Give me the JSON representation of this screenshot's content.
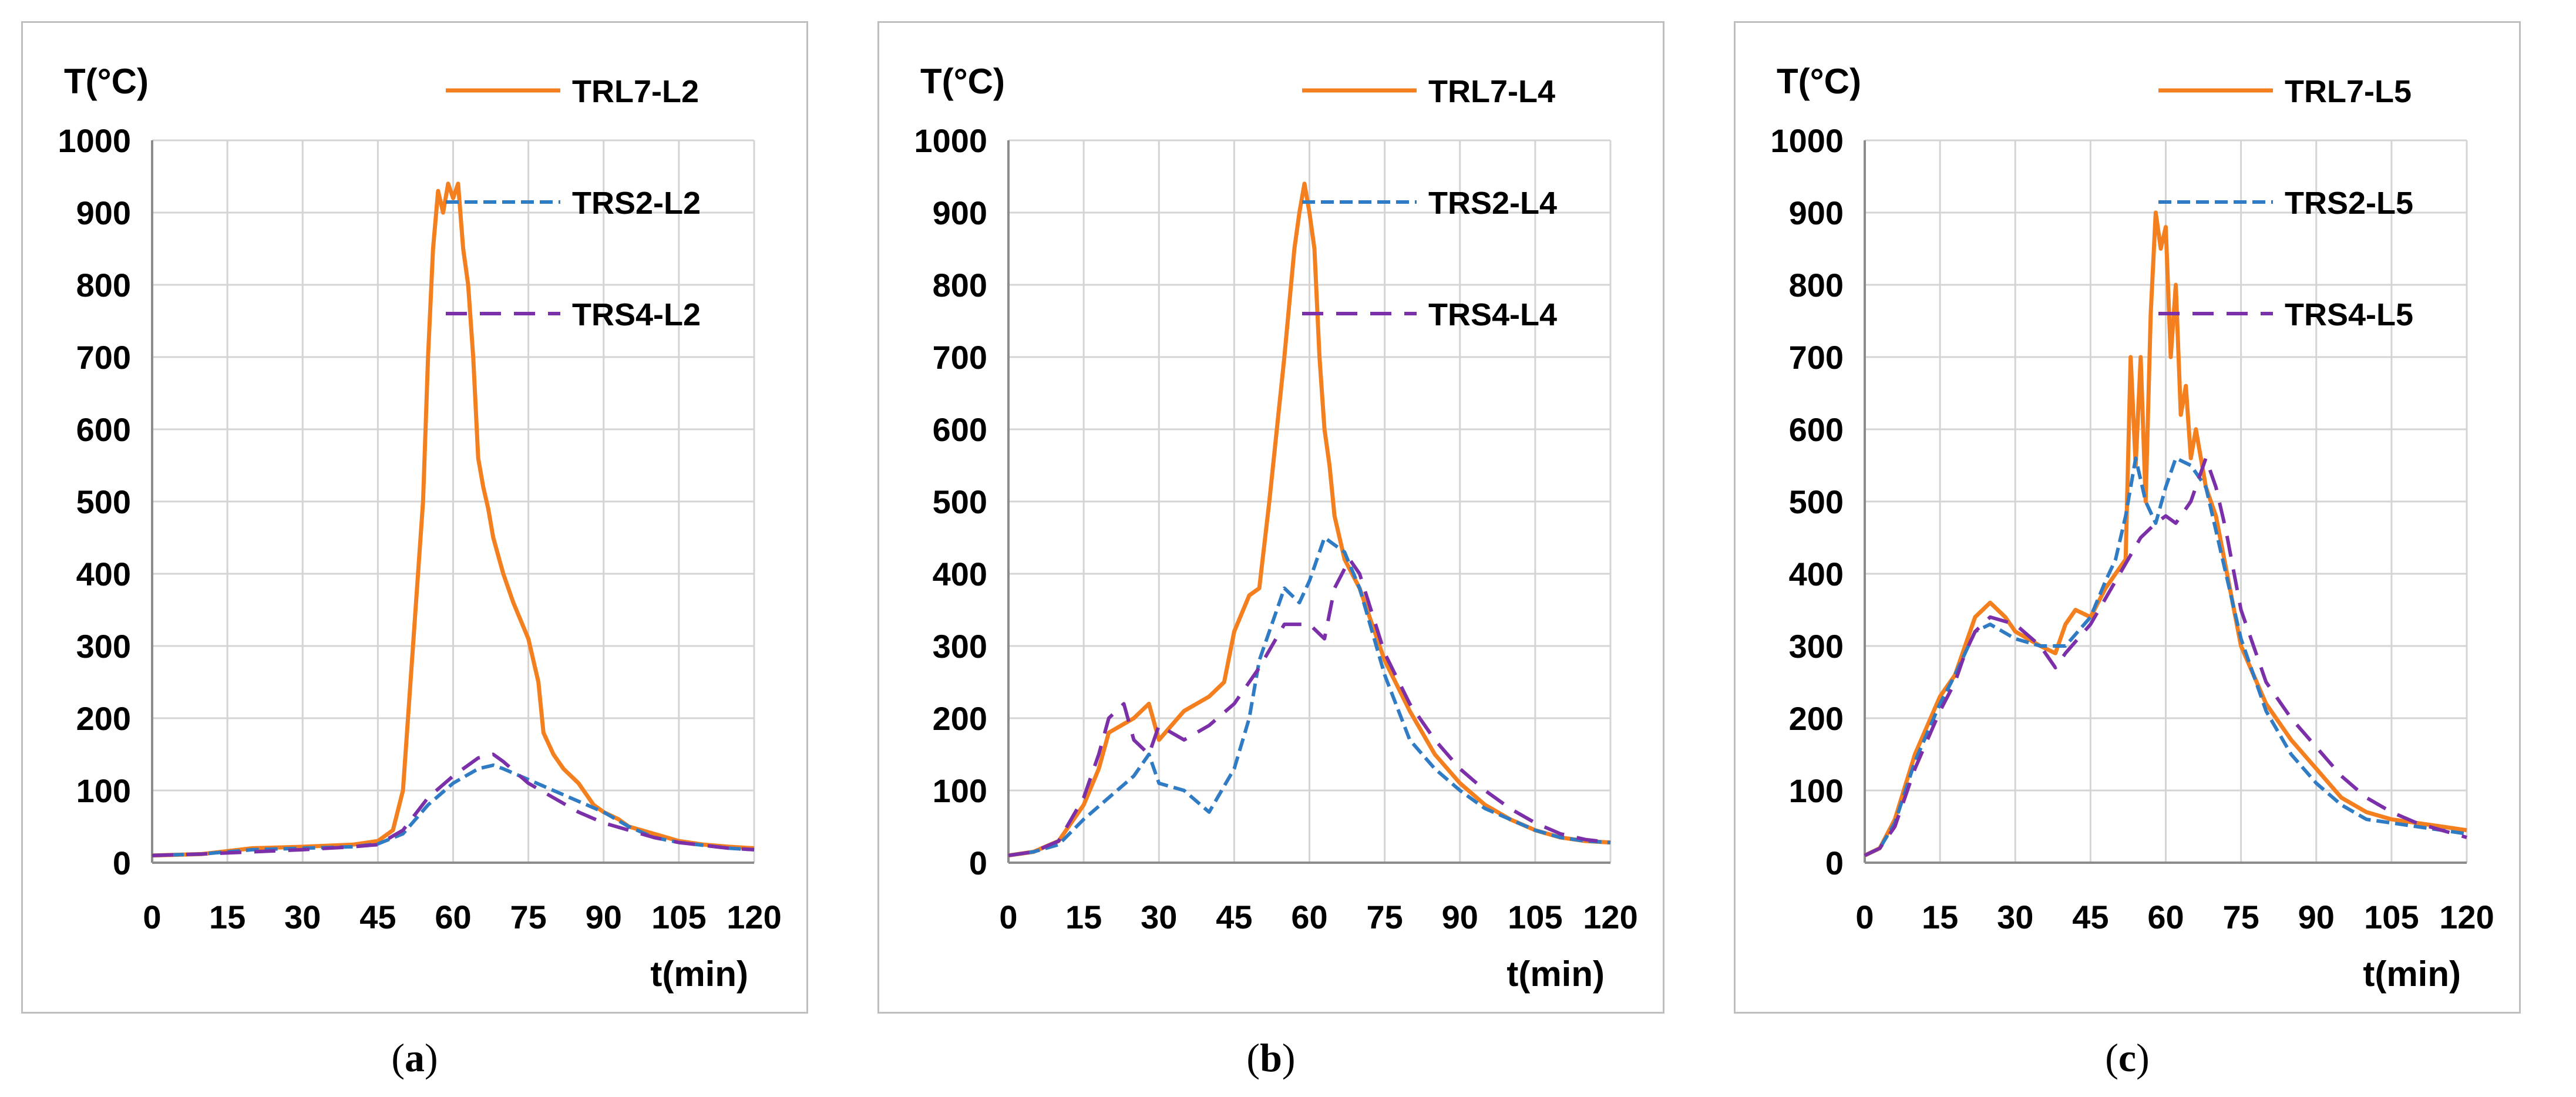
{
  "colors": {
    "trl7": "#F47F1F",
    "trs2": "#2F7CC4",
    "trs4": "#7B2FA8",
    "grid": "#d4d4d4",
    "axis": "#8c8c8c"
  },
  "chart_data": [
    {
      "type": "line",
      "panel_id": "a",
      "caption": {
        "open": "(",
        "letter": "a",
        "close": ")"
      },
      "ylabel": "T(°C)",
      "xlabel": "t(min)",
      "xlim": [
        0,
        120
      ],
      "ylim": [
        0,
        1000
      ],
      "xticks": [
        0,
        15,
        30,
        45,
        60,
        75,
        90,
        105,
        120
      ],
      "yticks": [
        0,
        100,
        200,
        300,
        400,
        500,
        600,
        700,
        800,
        900,
        1000
      ],
      "series": [
        {
          "name": "TRL7-L2",
          "style": "solid",
          "color": "#F47F1F",
          "x": [
            0,
            10,
            20,
            30,
            40,
            45,
            48,
            50,
            52,
            54,
            55,
            56,
            57,
            58,
            59,
            60,
            61,
            62,
            63,
            64,
            65,
            66,
            67,
            68,
            70,
            72,
            75,
            77,
            78,
            80,
            82,
            85,
            88,
            90,
            93,
            95,
            100,
            105,
            110,
            115,
            120
          ],
          "y": [
            10,
            12,
            20,
            22,
            25,
            30,
            45,
            100,
            300,
            500,
            700,
            850,
            930,
            900,
            940,
            920,
            940,
            850,
            800,
            700,
            560,
            520,
            490,
            450,
            400,
            360,
            310,
            250,
            180,
            150,
            130,
            110,
            80,
            70,
            60,
            50,
            40,
            30,
            25,
            22,
            20
          ]
        },
        {
          "name": "TRS2-L2",
          "style": "dash-fine",
          "color": "#2F7CC4",
          "x": [
            0,
            10,
            20,
            30,
            40,
            45,
            50,
            55,
            60,
            65,
            68,
            70,
            75,
            80,
            85,
            90,
            95,
            100,
            105,
            110,
            115,
            120
          ],
          "y": [
            10,
            12,
            18,
            20,
            22,
            26,
            40,
            80,
            110,
            130,
            135,
            130,
            115,
            100,
            85,
            70,
            50,
            35,
            28,
            24,
            20,
            18
          ]
        },
        {
          "name": "TRS4-L2",
          "style": "dash-wide",
          "color": "#7B2FA8",
          "x": [
            0,
            10,
            20,
            30,
            40,
            45,
            50,
            55,
            60,
            65,
            68,
            70,
            75,
            80,
            85,
            90,
            95,
            100,
            105,
            110,
            115,
            120
          ],
          "y": [
            10,
            12,
            15,
            18,
            22,
            25,
            45,
            90,
            120,
            145,
            150,
            140,
            110,
            90,
            70,
            55,
            45,
            35,
            28,
            24,
            20,
            18
          ]
        }
      ]
    },
    {
      "type": "line",
      "panel_id": "b",
      "caption": {
        "open": "(",
        "letter": "b",
        "close": ")"
      },
      "ylabel": "T(°C)",
      "xlabel": "t(min)",
      "xlim": [
        0,
        120
      ],
      "ylim": [
        0,
        1000
      ],
      "xticks": [
        0,
        15,
        30,
        45,
        60,
        75,
        90,
        105,
        120
      ],
      "yticks": [
        0,
        100,
        200,
        300,
        400,
        500,
        600,
        700,
        800,
        900,
        1000
      ],
      "series": [
        {
          "name": "TRL7-L4",
          "style": "solid",
          "color": "#F47F1F",
          "x": [
            0,
            5,
            10,
            15,
            18,
            20,
            25,
            28,
            30,
            35,
            40,
            43,
            45,
            48,
            50,
            52,
            55,
            57,
            58,
            59,
            60,
            61,
            62,
            63,
            64,
            65,
            67,
            70,
            75,
            80,
            85,
            90,
            95,
            100,
            105,
            110,
            115,
            120
          ],
          "y": [
            10,
            15,
            30,
            80,
            130,
            180,
            200,
            220,
            170,
            210,
            230,
            250,
            320,
            370,
            380,
            500,
            700,
            850,
            900,
            940,
            900,
            850,
            700,
            600,
            550,
            480,
            420,
            380,
            280,
            210,
            150,
            110,
            80,
            60,
            45,
            35,
            30,
            28
          ]
        },
        {
          "name": "TRS2-L4",
          "style": "dash-fine",
          "color": "#2F7CC4",
          "x": [
            0,
            5,
            10,
            15,
            20,
            25,
            28,
            30,
            35,
            40,
            45,
            48,
            50,
            55,
            58,
            60,
            63,
            65,
            67,
            70,
            75,
            80,
            85,
            90,
            95,
            100,
            105,
            110,
            115,
            120
          ],
          "y": [
            10,
            15,
            25,
            60,
            90,
            120,
            150,
            110,
            100,
            70,
            130,
            200,
            280,
            380,
            360,
            390,
            450,
            440,
            430,
            380,
            260,
            170,
            130,
            100,
            75,
            60,
            45,
            35,
            30,
            28
          ]
        },
        {
          "name": "TRS4-L4",
          "style": "dash-wide",
          "color": "#7B2FA8",
          "x": [
            0,
            5,
            10,
            15,
            18,
            20,
            23,
            25,
            28,
            30,
            35,
            40,
            45,
            50,
            55,
            60,
            63,
            65,
            68,
            70,
            75,
            80,
            85,
            90,
            95,
            100,
            105,
            110,
            115,
            120
          ],
          "y": [
            10,
            15,
            30,
            90,
            150,
            200,
            220,
            170,
            150,
            190,
            170,
            190,
            220,
            270,
            330,
            330,
            310,
            380,
            420,
            400,
            290,
            220,
            170,
            130,
            100,
            75,
            55,
            40,
            32,
            28
          ]
        }
      ]
    },
    {
      "type": "line",
      "panel_id": "c",
      "caption": {
        "open": "(",
        "letter": "c",
        "close": ")"
      },
      "ylabel": "T(°C)",
      "xlabel": "t(min)",
      "xlim": [
        0,
        120
      ],
      "ylim": [
        0,
        1000
      ],
      "xticks": [
        0,
        15,
        30,
        45,
        60,
        75,
        90,
        105,
        120
      ],
      "yticks": [
        0,
        100,
        200,
        300,
        400,
        500,
        600,
        700,
        800,
        900,
        1000
      ],
      "series": [
        {
          "name": "TRL7-L5",
          "style": "solid",
          "color": "#F47F1F",
          "x": [
            0,
            3,
            6,
            10,
            15,
            18,
            20,
            22,
            25,
            28,
            30,
            35,
            38,
            40,
            42,
            45,
            48,
            50,
            52,
            53,
            54,
            55,
            56,
            57,
            58,
            59,
            60,
            61,
            62,
            63,
            64,
            65,
            66,
            68,
            70,
            75,
            80,
            85,
            90,
            95,
            100,
            105,
            110,
            115,
            120
          ],
          "y": [
            10,
            20,
            60,
            150,
            230,
            260,
            300,
            340,
            360,
            340,
            320,
            300,
            290,
            330,
            350,
            340,
            380,
            400,
            420,
            700,
            550,
            700,
            500,
            760,
            900,
            850,
            880,
            700,
            800,
            620,
            660,
            560,
            600,
            520,
            480,
            300,
            220,
            170,
            130,
            90,
            70,
            60,
            55,
            50,
            45
          ]
        },
        {
          "name": "TRS2-L5",
          "style": "dash-fine",
          "color": "#2F7CC4",
          "x": [
            0,
            3,
            6,
            10,
            15,
            18,
            20,
            22,
            25,
            30,
            35,
            40,
            45,
            48,
            50,
            52,
            54,
            56,
            58,
            60,
            62,
            65,
            68,
            70,
            75,
            80,
            85,
            90,
            95,
            100,
            105,
            110,
            115,
            120
          ],
          "y": [
            10,
            20,
            55,
            140,
            220,
            260,
            290,
            320,
            330,
            310,
            300,
            300,
            340,
            390,
            420,
            480,
            560,
            500,
            470,
            520,
            560,
            550,
            520,
            460,
            310,
            210,
            150,
            110,
            80,
            60,
            55,
            50,
            45,
            40
          ]
        },
        {
          "name": "TRS4-L5",
          "style": "dash-wide",
          "color": "#7B2FA8",
          "x": [
            0,
            3,
            6,
            10,
            15,
            18,
            20,
            22,
            25,
            30,
            35,
            38,
            40,
            45,
            50,
            55,
            58,
            60,
            62,
            65,
            68,
            70,
            72,
            75,
            80,
            85,
            90,
            95,
            100,
            105,
            110,
            115,
            120
          ],
          "y": [
            10,
            20,
            50,
            130,
            210,
            250,
            290,
            320,
            340,
            330,
            300,
            270,
            290,
            330,
            390,
            450,
            470,
            480,
            470,
            500,
            560,
            520,
            460,
            350,
            250,
            200,
            160,
            120,
            90,
            70,
            55,
            45,
            35
          ]
        }
      ]
    }
  ]
}
